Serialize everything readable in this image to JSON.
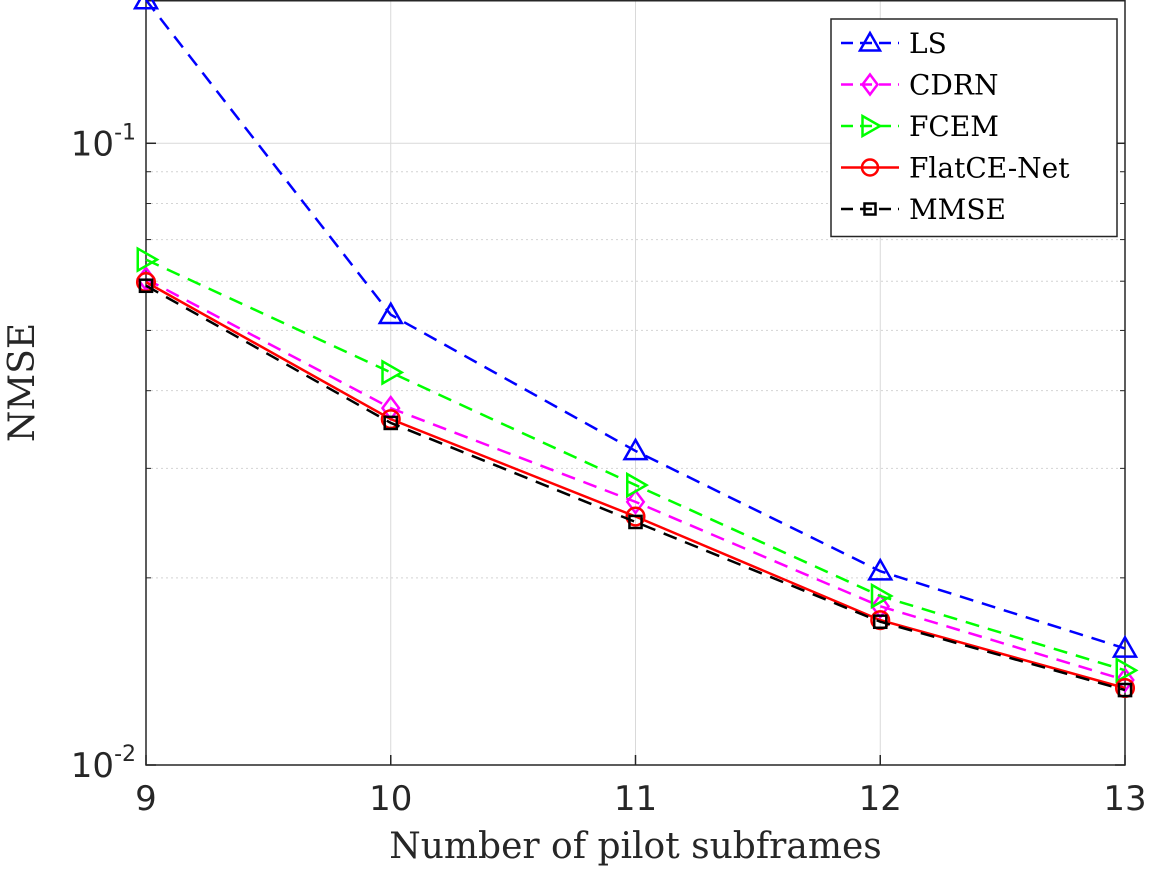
{
  "chart_data": {
    "type": "line",
    "title": "",
    "xlabel": "Number of pilot subframes",
    "ylabel": "NMSE",
    "x": [
      9,
      10,
      11,
      12,
      13
    ],
    "xlim": [
      9,
      13
    ],
    "ylim": [
      0.01,
      0.17
    ],
    "yscale": "log",
    "x_ticks": [
      "9",
      "10",
      "11",
      "12",
      "13"
    ],
    "y_ticks": [
      {
        "value": 0.1,
        "base": "10",
        "exp": "-1"
      },
      {
        "value": 0.01,
        "base": "10",
        "exp": "-2"
      }
    ],
    "grid": true,
    "legend_position": "top-right",
    "series": [
      {
        "name": "LS",
        "values": [
          0.17,
          0.053,
          0.032,
          0.0205,
          0.0154
        ],
        "color": "#0000ff",
        "dash": "dashed",
        "marker": "triangle-up"
      },
      {
        "name": "CDRN",
        "values": [
          0.0605,
          0.0375,
          0.0265,
          0.018,
          0.0137
        ],
        "color": "#ff00ff",
        "dash": "dashed",
        "marker": "diamond"
      },
      {
        "name": "FCEM",
        "values": [
          0.065,
          0.0428,
          0.0282,
          0.0187,
          0.0142
        ],
        "color": "#00ff00",
        "dash": "dashed",
        "marker": "triangle-right"
      },
      {
        "name": "FlatCE-Net",
        "values": [
          0.0598,
          0.036,
          0.0251,
          0.0171,
          0.0133
        ],
        "color": "#ff0000",
        "dash": "solid",
        "marker": "circle"
      },
      {
        "name": "MMSE",
        "values": [
          0.059,
          0.0355,
          0.0246,
          0.017,
          0.0132
        ],
        "color": "#000000",
        "dash": "dashed",
        "marker": "square"
      }
    ]
  }
}
